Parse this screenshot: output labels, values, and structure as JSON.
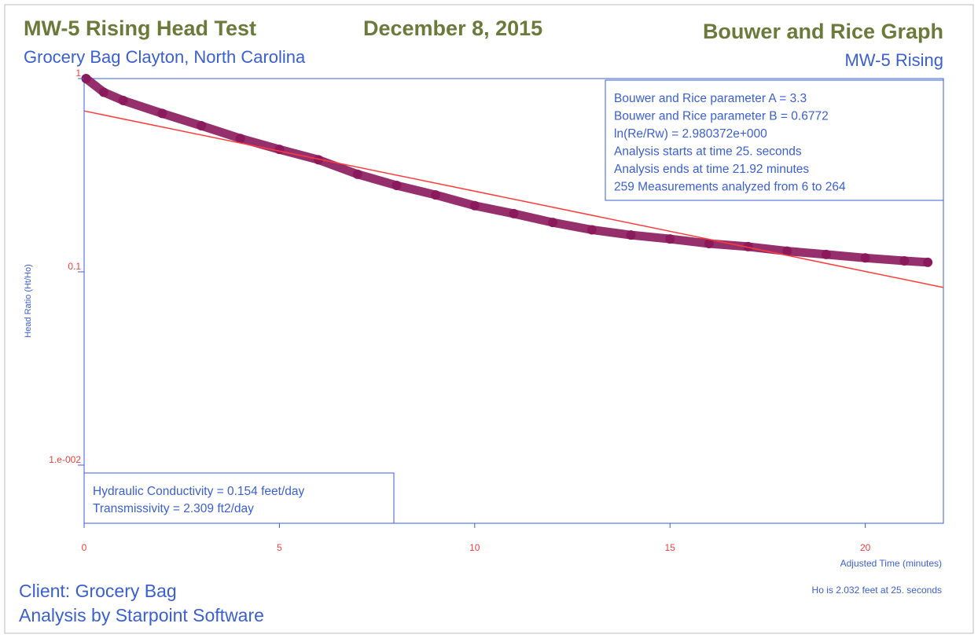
{
  "chart_data": {
    "type": "scatter",
    "title": "MW-5 Rising Head Test",
    "date": "December 8, 2015",
    "graph_name": "Bouwer and Rice Graph",
    "subtitle": "Grocery Bag Clayton, North Carolina",
    "well_label": "MW-5 Rising",
    "x_label": "Adjusted Time (minutes)",
    "y_label": "Head Ratio (Ht/Ho)",
    "xlim": [
      0,
      22
    ],
    "xticks": [
      0,
      5,
      10,
      15,
      20
    ],
    "ylim": [
      0.005,
      1
    ],
    "yticks": [
      1,
      0.1,
      {
        "value": 0.01,
        "label": "1.e-002"
      }
    ],
    "log_y": true,
    "series": [
      {
        "marker": "dot",
        "color": "#8b1a5c",
        "x": [
          0.05,
          0.5,
          1,
          2,
          3,
          4,
          5,
          6,
          7,
          8,
          9,
          10,
          11,
          12,
          13,
          14,
          15,
          16,
          17,
          18,
          19,
          20,
          21,
          21.6
        ],
        "values": [
          1.0,
          0.85,
          0.77,
          0.66,
          0.57,
          0.49,
          0.43,
          0.38,
          0.32,
          0.28,
          0.25,
          0.22,
          0.2,
          0.18,
          0.165,
          0.155,
          0.148,
          0.14,
          0.135,
          0.128,
          0.123,
          0.118,
          0.114,
          0.112
        ]
      },
      {
        "marker": "line",
        "color": "#ff3b3b",
        "x": [
          0,
          22
        ],
        "values": [
          0.68,
          0.083
        ]
      }
    ],
    "parameters": [
      "Bouwer and Rice parameter A = 3.3",
      "Bouwer and Rice parameter B = 0.6772",
      "ln(Re/Rw) = 2.980372e+000",
      "Analysis starts at time 25. seconds",
      "Analysis ends at time 21.92 minutes",
      "259 Measurements analyzed from 6 to 264"
    ],
    "results": [
      "Hydraulic Conductivity = 0.154 feet/day",
      "Transmissivity = 2.309 ft2/day"
    ],
    "client": "Client:  Grocery Bag",
    "analyst": "Analysis by Starpoint Software",
    "ho_note": "Ho is 2.032 feet at 25. seconds"
  }
}
